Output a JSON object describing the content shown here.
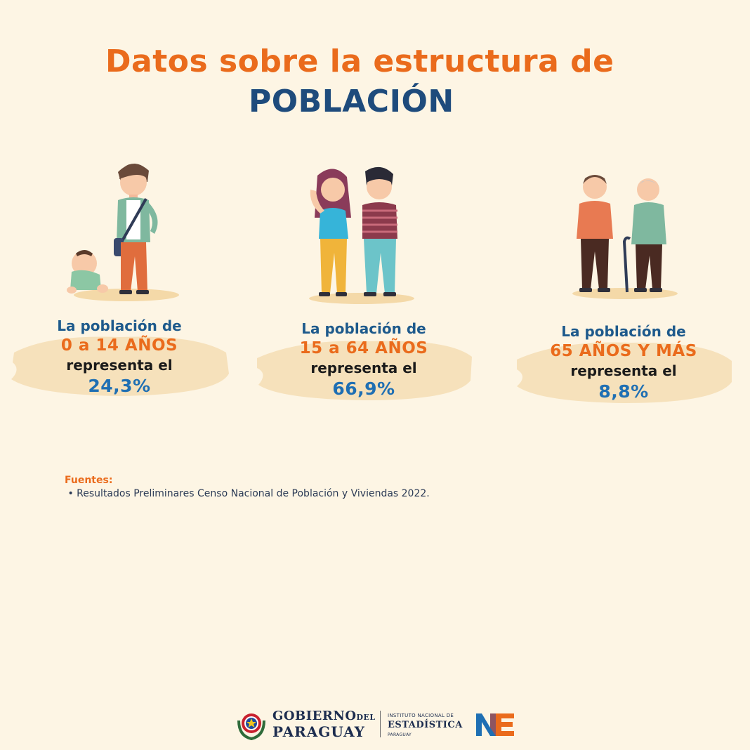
{
  "title": {
    "line1": "Datos sobre la estructura de",
    "line2": "POBLACIÓN"
  },
  "groups": [
    {
      "intro": "La población de",
      "age": "0 a 14 AÑOS",
      "represents": "representa el",
      "percent": "24,3%"
    },
    {
      "intro": "La población de",
      "age": "15 a 64 AÑOS",
      "represents": "representa el",
      "percent": "66,9%"
    },
    {
      "intro": "La población de",
      "age": "65 AÑOS Y MÁS",
      "represents": "representa el",
      "percent": "8,8%"
    }
  ],
  "sources": {
    "title": "Fuentes:",
    "items": [
      "Resultados Preliminares Censo Nacional de Población y Viviendas 2022."
    ]
  },
  "footer": {
    "gov_line1": "GOBIERNO",
    "gov_small": "DEL",
    "gov_line2": "PARAGUAY",
    "ine_line1": "INSTITUTO NACIONAL DE",
    "ine_line2": "ESTADÍSTICA",
    "ine_line3": "PARAGUAY"
  },
  "colors": {
    "background": "#fdf5e4",
    "orange": "#ea6b1c",
    "navy": "#1e4b7c",
    "blue": "#1f6fb3",
    "brush": "#f6dfb8"
  }
}
